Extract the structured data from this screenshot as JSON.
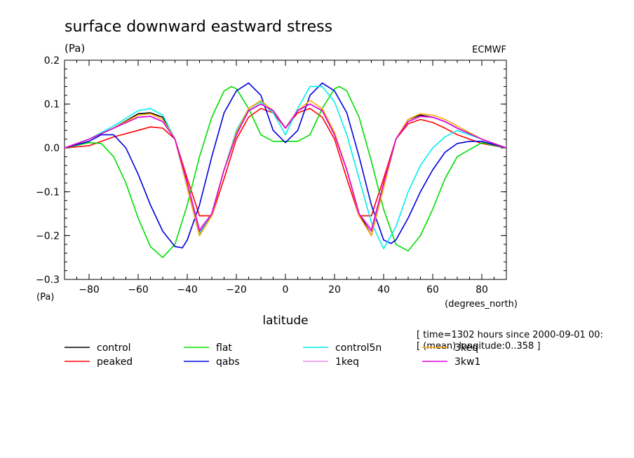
{
  "chart_data": {
    "type": "line",
    "title": "surface downward eastward stress",
    "yunit": "(Pa)",
    "source": "ECMWF",
    "xlabel": "latitude",
    "xunit": "(degrees_north)",
    "yunit_bottom": "(Pa)",
    "xlim": [
      -90,
      90
    ],
    "ylim": [
      -0.3,
      0.2
    ],
    "xticks": [
      -80,
      -60,
      -40,
      -20,
      0,
      20,
      40,
      60,
      80
    ],
    "yticks": [
      -0.3,
      -0.2,
      -0.1,
      0.0,
      0.1,
      0.2
    ],
    "ytick_labels": [
      "−0.3",
      "−0.2",
      "−0.1",
      "0.0",
      "0.1",
      "0.2"
    ],
    "xtick_labels": [
      "−80",
      "−60",
      "−40",
      "−20",
      "0",
      "20",
      "40",
      "60",
      "80"
    ],
    "notes": [
      "[ time=1302 hours since 2000-09-01 00:",
      "[ (mean) longitude:0..358 ]"
    ],
    "series": [
      {
        "name": "control",
        "color": "#000000",
        "x": [
          -90,
          -80,
          -70,
          -60,
          -55,
          -50,
          -45,
          -40,
          -35,
          -30,
          -25,
          -20,
          -15,
          -10,
          -5,
          0,
          5,
          10,
          15,
          20,
          25,
          30,
          35,
          40,
          45,
          50,
          55,
          60,
          65,
          70,
          80,
          90
        ],
        "y": [
          0.0,
          0.02,
          0.045,
          0.078,
          0.08,
          0.07,
          0.02,
          -0.09,
          -0.2,
          -0.15,
          -0.05,
          0.03,
          0.085,
          0.1,
          0.085,
          0.045,
          0.085,
          0.1,
          0.085,
          0.03,
          -0.05,
          -0.15,
          -0.2,
          -0.09,
          0.02,
          0.065,
          0.075,
          0.07,
          0.06,
          0.045,
          0.02,
          0.0
        ]
      },
      {
        "name": "peaked",
        "color": "#ff0000",
        "x": [
          -90,
          -80,
          -70,
          -60,
          -55,
          -50,
          -45,
          -40,
          -35,
          -30,
          -25,
          -20,
          -15,
          -10,
          -5,
          0,
          5,
          10,
          15,
          20,
          25,
          30,
          35,
          40,
          45,
          50,
          55,
          60,
          65,
          70,
          80,
          90
        ],
        "y": [
          0.0,
          0.005,
          0.025,
          0.04,
          0.048,
          0.045,
          0.02,
          -0.07,
          -0.155,
          -0.155,
          -0.07,
          0.02,
          0.07,
          0.09,
          0.08,
          0.045,
          0.08,
          0.09,
          0.07,
          0.02,
          -0.07,
          -0.155,
          -0.155,
          -0.07,
          0.02,
          0.055,
          0.065,
          0.058,
          0.045,
          0.03,
          0.01,
          0.0
        ]
      },
      {
        "name": "flat",
        "color": "#00dd00",
        "x": [
          -90,
          -80,
          -75,
          -70,
          -65,
          -60,
          -55,
          -50,
          -45,
          -40,
          -35,
          -30,
          -25,
          -22,
          -20,
          -15,
          -10,
          -5,
          0,
          5,
          10,
          15,
          20,
          22,
          25,
          30,
          35,
          40,
          45,
          50,
          55,
          60,
          65,
          70,
          80,
          90
        ],
        "y": [
          0.0,
          0.012,
          0.01,
          -0.02,
          -0.08,
          -0.16,
          -0.225,
          -0.25,
          -0.22,
          -0.13,
          -0.02,
          0.07,
          0.13,
          0.14,
          0.135,
          0.09,
          0.03,
          0.015,
          0.015,
          0.015,
          0.03,
          0.09,
          0.135,
          0.14,
          0.13,
          0.07,
          -0.03,
          -0.14,
          -0.22,
          -0.235,
          -0.2,
          -0.14,
          -0.07,
          -0.02,
          0.012,
          0.0
        ]
      },
      {
        "name": "qabs",
        "color": "#0000dd",
        "x": [
          -90,
          -80,
          -75,
          -70,
          -65,
          -60,
          -55,
          -50,
          -45,
          -42,
          -40,
          -35,
          -30,
          -25,
          -20,
          -15,
          -10,
          -5,
          0,
          5,
          10,
          15,
          20,
          25,
          30,
          35,
          40,
          43,
          45,
          50,
          55,
          60,
          65,
          70,
          75,
          80,
          90
        ],
        "y": [
          0.0,
          0.015,
          0.03,
          0.03,
          0.0,
          -0.06,
          -0.13,
          -0.19,
          -0.225,
          -0.228,
          -0.21,
          -0.13,
          -0.02,
          0.08,
          0.13,
          0.148,
          0.12,
          0.04,
          0.012,
          0.04,
          0.12,
          0.148,
          0.13,
          0.08,
          -0.02,
          -0.13,
          -0.21,
          -0.218,
          -0.21,
          -0.16,
          -0.1,
          -0.05,
          -0.01,
          0.01,
          0.015,
          0.015,
          0.0
        ]
      },
      {
        "name": "control5n",
        "color": "#00eeee",
        "x": [
          -90,
          -80,
          -70,
          -60,
          -55,
          -50,
          -45,
          -40,
          -35,
          -30,
          -25,
          -20,
          -15,
          -10,
          -5,
          0,
          5,
          10,
          15,
          20,
          25,
          30,
          35,
          40,
          45,
          50,
          55,
          60,
          65,
          70,
          80,
          90
        ],
        "y": [
          0.0,
          0.02,
          0.05,
          0.085,
          0.09,
          0.075,
          0.02,
          -0.09,
          -0.195,
          -0.15,
          -0.05,
          0.04,
          0.09,
          0.105,
          0.08,
          0.03,
          0.09,
          0.14,
          0.14,
          0.105,
          0.03,
          -0.07,
          -0.17,
          -0.23,
          -0.18,
          -0.1,
          -0.04,
          0.0,
          0.025,
          0.04,
          0.02,
          0.0
        ]
      },
      {
        "name": "1keq",
        "color": "#ee88ee",
        "x": [
          -90,
          -80,
          -70,
          -60,
          -55,
          -50,
          -45,
          -40,
          -35,
          -30,
          -25,
          -20,
          -15,
          -10,
          -5,
          0,
          5,
          10,
          15,
          20,
          25,
          30,
          35,
          40,
          45,
          50,
          55,
          60,
          65,
          70,
          80,
          90
        ],
        "y": [
          0.0,
          0.02,
          0.045,
          0.07,
          0.072,
          0.06,
          0.02,
          -0.08,
          -0.185,
          -0.15,
          -0.05,
          0.03,
          0.085,
          0.1,
          0.085,
          0.045,
          0.085,
          0.1,
          0.085,
          0.03,
          -0.05,
          -0.15,
          -0.185,
          -0.08,
          0.02,
          0.06,
          0.072,
          0.07,
          0.06,
          0.045,
          0.02,
          0.0
        ]
      },
      {
        "name": "3keq",
        "color": "#ffaa00",
        "x": [
          -90,
          -80,
          -70,
          -60,
          -55,
          -50,
          -45,
          -40,
          -35,
          -30,
          -25,
          -20,
          -15,
          -10,
          -5,
          0,
          5,
          10,
          15,
          20,
          25,
          30,
          35,
          40,
          45,
          50,
          55,
          60,
          65,
          70,
          80,
          90
        ],
        "y": [
          0.0,
          0.02,
          0.045,
          0.075,
          0.078,
          0.065,
          0.02,
          -0.09,
          -0.2,
          -0.155,
          -0.05,
          0.035,
          0.09,
          0.108,
          0.085,
          0.045,
          0.085,
          0.108,
          0.09,
          0.035,
          -0.05,
          -0.155,
          -0.2,
          -0.09,
          0.02,
          0.065,
          0.078,
          0.075,
          0.065,
          0.05,
          0.02,
          0.0
        ]
      },
      {
        "name": "3kw1",
        "color": "#dd00dd",
        "x": [
          -90,
          -80,
          -70,
          -60,
          -55,
          -50,
          -45,
          -40,
          -35,
          -30,
          -25,
          -20,
          -15,
          -10,
          -5,
          0,
          5,
          10,
          15,
          20,
          25,
          30,
          35,
          40,
          45,
          50,
          55,
          60,
          65,
          70,
          80,
          90
        ],
        "y": [
          0.0,
          0.02,
          0.045,
          0.07,
          0.072,
          0.06,
          0.02,
          -0.08,
          -0.19,
          -0.15,
          -0.05,
          0.03,
          0.085,
          0.1,
          0.085,
          0.045,
          0.085,
          0.1,
          0.085,
          0.03,
          -0.05,
          -0.15,
          -0.19,
          -0.08,
          0.02,
          0.06,
          0.072,
          0.07,
          0.06,
          0.045,
          0.02,
          0.0
        ]
      }
    ]
  }
}
